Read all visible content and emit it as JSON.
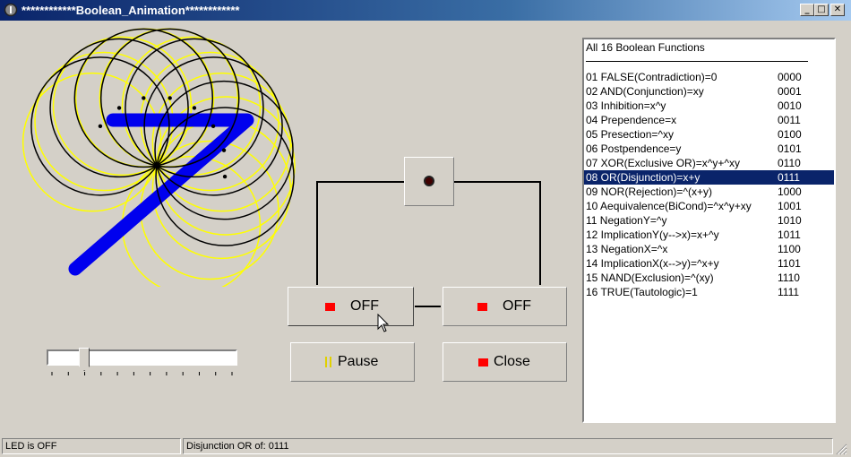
{
  "window": {
    "title": "************Boolean_Animation************",
    "controls": {
      "minimize": "_",
      "maximize": "□",
      "close": "✕"
    }
  },
  "animation": {
    "digit": "7",
    "digit_color": "#0000ee",
    "circle_colors": {
      "black": "#000000",
      "yellow": "#ffff00"
    }
  },
  "slider": {
    "value_fraction": 0.18,
    "tick_count": 12
  },
  "circuit": {
    "led_state": "off",
    "led_color": "#400000"
  },
  "buttons": {
    "switch_x": {
      "label": "OFF",
      "indicator_color": "#ff0000"
    },
    "switch_y": {
      "label": "OFF",
      "indicator_color": "#ff0000"
    },
    "pause": {
      "label": "Pause",
      "icon": "pause-icon"
    },
    "close": {
      "label": "Close",
      "indicator_color": "#ff0000"
    }
  },
  "functions_list": {
    "header": "All 16 Boolean Functions",
    "selected_index": 7,
    "items": [
      {
        "label": "01 FALSE(Contradiction)=0",
        "code": "0000"
      },
      {
        "label": "02 AND(Conjunction)=xy",
        "code": "0001"
      },
      {
        "label": "03 Inhibition=x^y",
        "code": "0010"
      },
      {
        "label": "04 Prependence=x",
        "code": "0011"
      },
      {
        "label": "05 Presection=^xy",
        "code": "0100"
      },
      {
        "label": "06 Postpendence=y",
        "code": "0101"
      },
      {
        "label": "07 XOR(Exclusive OR)=x^y+^xy",
        "code": "0110"
      },
      {
        "label": "08 OR(Disjunction)=x+y",
        "code": "0111"
      },
      {
        "label": "09 NOR(Rejection)=^(x+y)",
        "code": "1000"
      },
      {
        "label": "10 Aequivalence(BiCond)=^x^y+xy",
        "code": "1001"
      },
      {
        "label": "11 NegationY=^y",
        "code": "1010"
      },
      {
        "label": "12 ImplicationY(y-->x)=x+^y",
        "code": "1011"
      },
      {
        "label": "13 NegationX=^x",
        "code": "1100"
      },
      {
        "label": "14 ImplicationX(x-->y)=^x+y",
        "code": "1101"
      },
      {
        "label": "15 NAND(Exclusion)=^(xy)",
        "code": "1110"
      },
      {
        "label": "16 TRUE(Tautologic)=1",
        "code": "1111"
      }
    ]
  },
  "statusbar": {
    "left": "LED is OFF",
    "right": "Disjunction OR of: 0111"
  }
}
